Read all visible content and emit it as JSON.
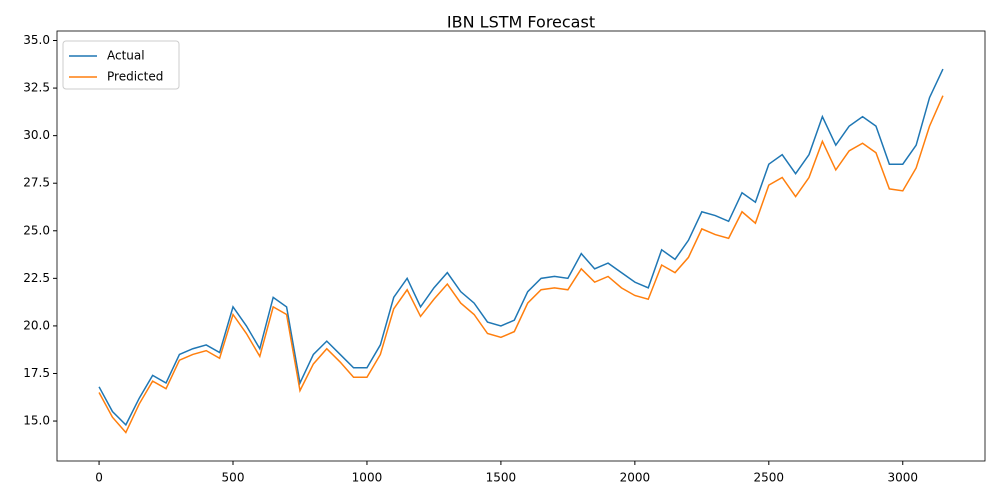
{
  "chart_data": {
    "type": "line",
    "title": "IBN LSTM Forecast",
    "x": [
      0,
      50,
      100,
      150,
      200,
      250,
      300,
      350,
      400,
      450,
      500,
      550,
      600,
      650,
      700,
      750,
      800,
      850,
      900,
      950,
      1000,
      1050,
      1100,
      1150,
      1200,
      1250,
      1300,
      1350,
      1400,
      1450,
      1500,
      1550,
      1600,
      1650,
      1700,
      1750,
      1800,
      1850,
      1900,
      1950,
      2000,
      2050,
      2100,
      2150,
      2200,
      2250,
      2300,
      2350,
      2400,
      2450,
      2500,
      2550,
      2600,
      2650,
      2700,
      2750,
      2800,
      2850,
      2900,
      2950,
      3000,
      3050,
      3100,
      3150
    ],
    "series": [
      {
        "name": "Actual",
        "color": "#1f77b4",
        "values": [
          16.8,
          15.5,
          14.8,
          16.2,
          17.4,
          17.0,
          18.5,
          18.8,
          19.0,
          18.6,
          21.0,
          20.0,
          18.8,
          21.5,
          21.0,
          17.0,
          18.5,
          19.2,
          18.5,
          17.8,
          17.8,
          19.0,
          21.5,
          22.5,
          21.0,
          22.0,
          22.8,
          21.8,
          21.2,
          20.2,
          20.0,
          20.3,
          21.8,
          22.5,
          22.6,
          22.5,
          23.8,
          23.0,
          23.3,
          22.8,
          22.3,
          22.0,
          24.0,
          23.5,
          24.5,
          26.0,
          25.8,
          25.5,
          27.0,
          26.5,
          28.5,
          29.0,
          28.0,
          29.0,
          31.0,
          29.5,
          30.5,
          31.0,
          30.5,
          28.5,
          28.5,
          29.5,
          32.0,
          33.5
        ]
      },
      {
        "name": "Predicted",
        "color": "#ff7f0e",
        "values": [
          16.5,
          15.2,
          14.4,
          15.9,
          17.1,
          16.7,
          18.2,
          18.5,
          18.7,
          18.3,
          20.6,
          19.6,
          18.4,
          21.0,
          20.6,
          16.6,
          18.0,
          18.8,
          18.1,
          17.3,
          17.3,
          18.5,
          20.9,
          21.9,
          20.5,
          21.4,
          22.2,
          21.2,
          20.6,
          19.6,
          19.4,
          19.7,
          21.2,
          21.9,
          22.0,
          21.9,
          23.0,
          22.3,
          22.6,
          22.0,
          21.6,
          21.4,
          23.2,
          22.8,
          23.6,
          25.1,
          24.8,
          24.6,
          26.0,
          25.4,
          27.4,
          27.8,
          26.8,
          27.8,
          29.7,
          28.2,
          29.2,
          29.6,
          29.1,
          27.2,
          27.1,
          28.3,
          30.5,
          32.1
        ]
      }
    ],
    "xlim": [
      -157,
      3307
    ],
    "ylim": [
      12.9,
      35.5
    ],
    "xticks": [
      0,
      500,
      1000,
      1500,
      2000,
      2500,
      3000
    ],
    "yticks": [
      {
        "value": 15,
        "label": "15.0"
      },
      {
        "value": 17.5,
        "label": "17.5"
      },
      {
        "value": 20,
        "label": "20.0"
      },
      {
        "value": 22.5,
        "label": "22.5"
      },
      {
        "value": 25,
        "label": "25.0"
      },
      {
        "value": 27.5,
        "label": "27.5"
      },
      {
        "value": 30,
        "label": "30.0"
      },
      {
        "value": 32.5,
        "label": "32.5"
      },
      {
        "value": 35,
        "label": "35.0"
      }
    ],
    "legend": "upper left"
  }
}
